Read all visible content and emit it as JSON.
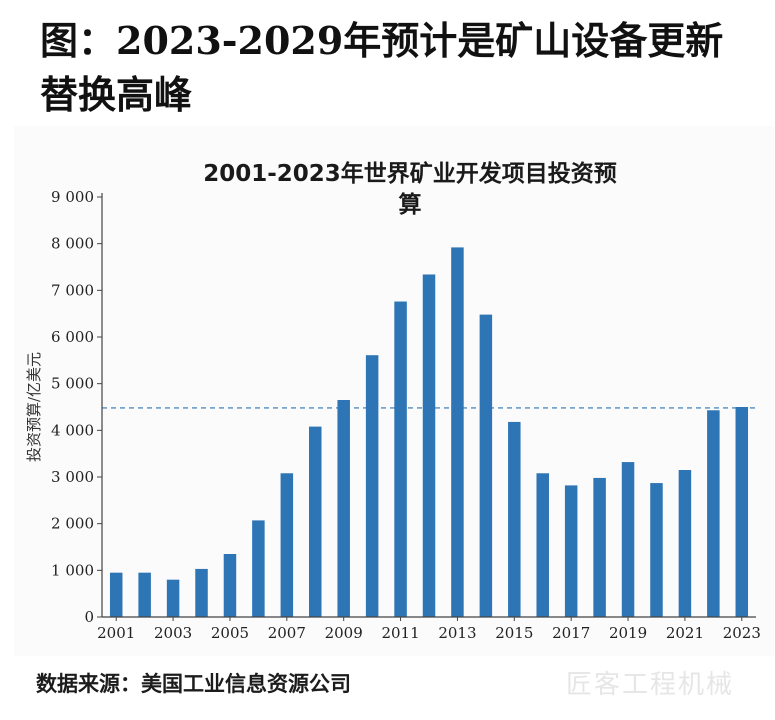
{
  "page": {
    "heading": "图：2023-2029年预计是矿山设备更新替换高峰",
    "source": "数据来源：美国工业信息资源公司",
    "watermark": "匠客工程机械"
  },
  "colors": {
    "bar": "#2e75b6",
    "reference_line": "#2e75b6",
    "axis": "#444444"
  },
  "chart_data": {
    "type": "bar",
    "title": "2001-2023年世界矿业开发项目投资预算",
    "title_lines": [
      "2001-2023年世界矿业开发项目投资预算"
    ],
    "ylabel": "投资预算/亿美元",
    "xlabel": "",
    "ylim": [
      0,
      9000
    ],
    "yticks": [
      0,
      1000,
      2000,
      3000,
      4000,
      5000,
      6000,
      7000,
      8000,
      9000
    ],
    "ytick_labels": [
      "0",
      "1 000",
      "2 000",
      "3 000",
      "4 000",
      "5 000",
      "6 000",
      "7 000",
      "8 000",
      "9 000"
    ],
    "categories": [
      "2001",
      "2002",
      "2003",
      "2004",
      "2005",
      "2006",
      "2007",
      "2008",
      "2009",
      "2010",
      "2011",
      "2012",
      "2013",
      "2014",
      "2015",
      "2016",
      "2017",
      "2018",
      "2019",
      "2020",
      "2021",
      "2022",
      "2023"
    ],
    "xtick_labels": [
      "2001",
      "2003",
      "2005",
      "2007",
      "2009",
      "2011",
      "2013",
      "2015",
      "2017",
      "2019",
      "2021",
      "2023"
    ],
    "values": [
      950,
      950,
      800,
      1030,
      1350,
      2070,
      3080,
      4080,
      4650,
      5610,
      6760,
      7340,
      7920,
      6480,
      4180,
      3080,
      2820,
      2980,
      3320,
      2870,
      3150,
      4430,
      4500
    ],
    "reference_line": 4480,
    "grid": false,
    "legend": "none"
  }
}
